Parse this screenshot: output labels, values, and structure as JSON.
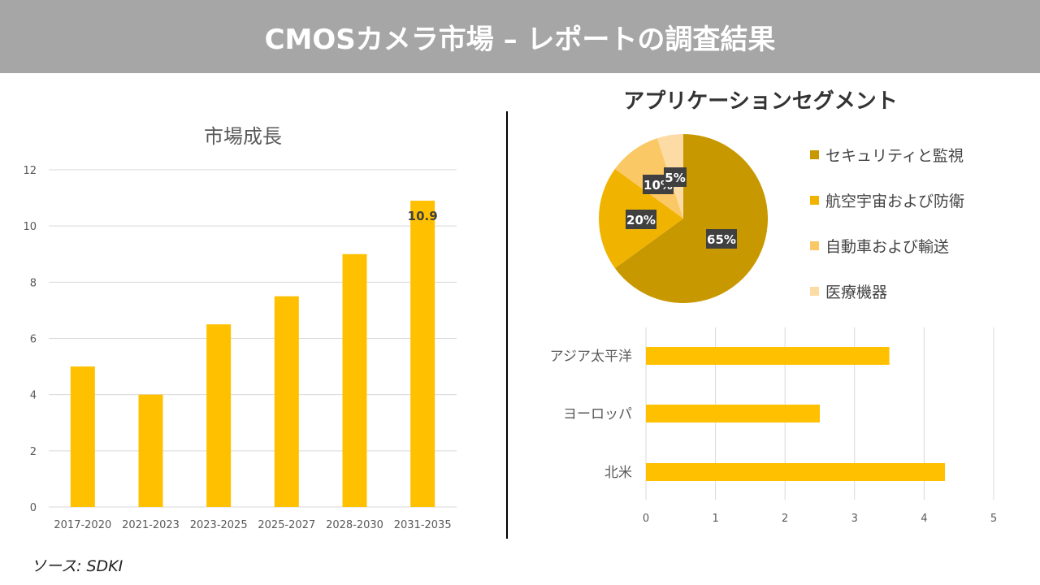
{
  "header": {
    "title": "CMOSカメラ市場 – レポートの調査結果"
  },
  "source": "ソース: SDKI",
  "chart_data": [
    {
      "type": "bar",
      "title": "市場成長",
      "categories": [
        "2017-2020",
        "2021-2023",
        "2023-2025",
        "2025-2027",
        "2028-2030",
        "2031-2035"
      ],
      "values": [
        5,
        4,
        6.5,
        7.5,
        9,
        10.9
      ],
      "ylim": [
        0,
        12
      ],
      "yticks": [
        "0",
        "2",
        "4",
        "6",
        "8",
        "10",
        "12"
      ],
      "data_labels": {
        "5": "10.9"
      },
      "grid": true,
      "color": "#FFC000"
    },
    {
      "type": "pie",
      "title": "アプリケーションセグメント",
      "labels": [
        "セキュリティと監視",
        "航空宇宙および防衛",
        "自動車および輸送",
        "医療機器"
      ],
      "values": [
        65,
        20,
        10,
        5
      ],
      "data_labels": [
        "65%",
        "20%",
        "10%",
        "5%"
      ],
      "colors": [
        "#C89800",
        "#F0B400",
        "#FAC864",
        "#FDDBA4"
      ],
      "legend": "right"
    },
    {
      "type": "bar",
      "orientation": "horizontal",
      "categories": [
        "アジア太平洋",
        "ヨーロッパ",
        "北米"
      ],
      "values": [
        3.5,
        2.5,
        4.3
      ],
      "xlim": [
        0,
        5
      ],
      "xticks": [
        "0",
        "1",
        "2",
        "3",
        "4",
        "5"
      ],
      "grid": true,
      "color": "#FFC000"
    }
  ]
}
